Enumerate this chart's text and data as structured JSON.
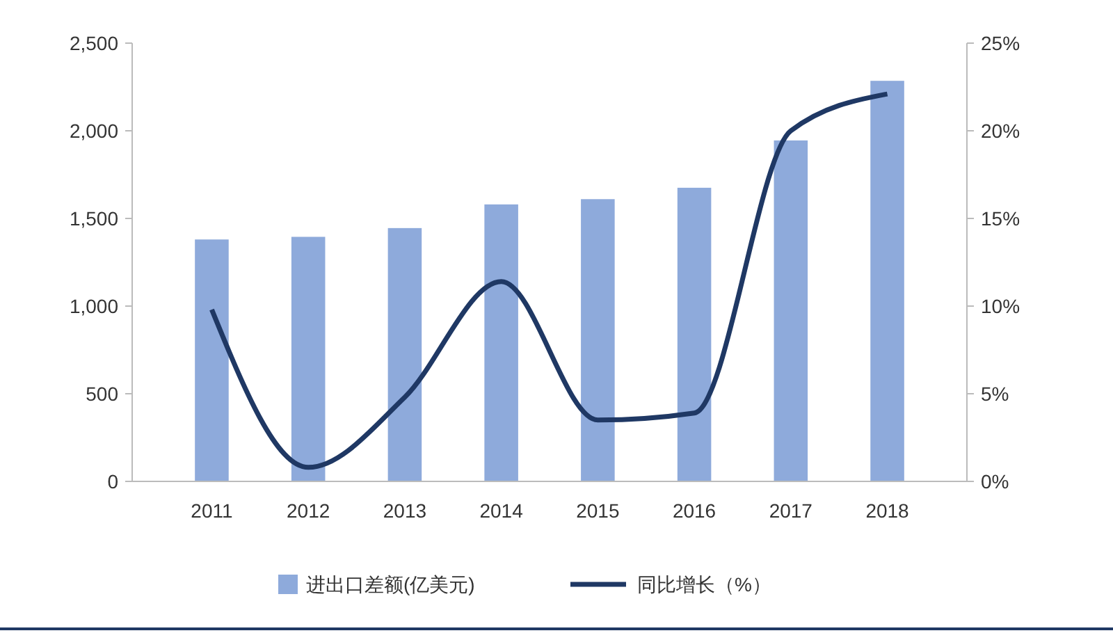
{
  "chart_data": {
    "type": "bar",
    "categories": [
      "2011",
      "2012",
      "2013",
      "2014",
      "2015",
      "2016",
      "2017",
      "2018"
    ],
    "series": [
      {
        "name": "进出口差额(亿美元)",
        "color": "#8eaadb",
        "values": [
          1380,
          1395,
          1445,
          1580,
          1610,
          1675,
          1945,
          2285
        ]
      },
      {
        "name": "同比增长（%）",
        "type": "line",
        "axis": "y2",
        "color": "#1f3864",
        "values": [
          9.8,
          0.8,
          4.8,
          11.4,
          3.5,
          3.9,
          20,
          22.1
        ]
      }
    ],
    "ylim": [
      0,
      2500
    ],
    "yticks": [
      {
        "value": 0,
        "label": "0"
      },
      {
        "value": 500,
        "label": "500"
      },
      {
        "value": 1000,
        "label": "1,000"
      },
      {
        "value": 1500,
        "label": "1,500"
      },
      {
        "value": 2000,
        "label": "2,000"
      },
      {
        "value": 2500,
        "label": "2,500"
      }
    ],
    "y2lim": [
      0,
      25
    ],
    "y2ticks": [
      {
        "value": 0,
        "label": "0%"
      },
      {
        "value": 5,
        "label": "5%"
      },
      {
        "value": 10,
        "label": "10%"
      },
      {
        "value": 15,
        "label": "15%"
      },
      {
        "value": 20,
        "label": "20%"
      },
      {
        "value": 25,
        "label": "25%"
      }
    ],
    "legend": "bottom",
    "marker": "none",
    "line_style": "solid"
  }
}
